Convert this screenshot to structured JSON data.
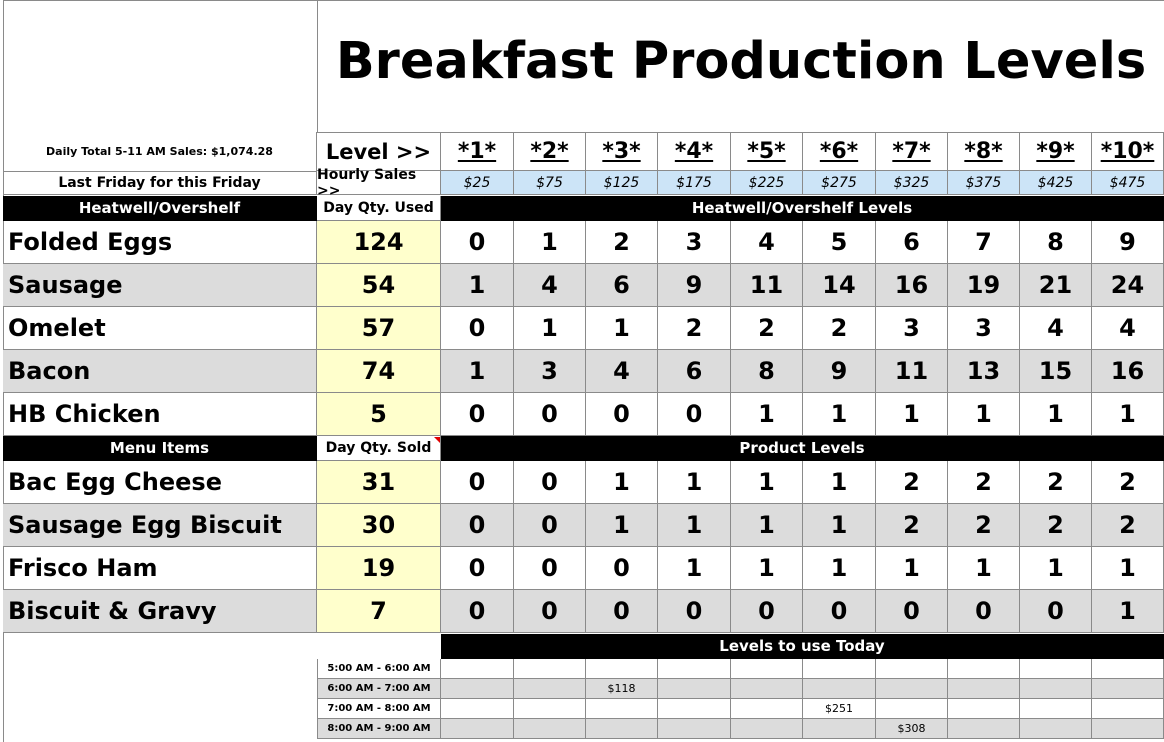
{
  "title": "Breakfast Production Levels",
  "daily_total": "Daily Total 5-11 AM Sales: $1,074.28",
  "last_friday": "Last Friday for this Friday",
  "level_label": "Level >>",
  "hourly_sales_label": "Hourly Sales >>",
  "levels": [
    "*1*",
    "*2*",
    "*3*",
    "*4*",
    "*5*",
    "*6*",
    "*7*",
    "*8*",
    "*9*",
    "*10*"
  ],
  "hourly_sales": [
    "$25",
    "$75",
    "$125",
    "$175",
    "$225",
    "$275",
    "$325",
    "$375",
    "$425",
    "$475"
  ],
  "heatwell": {
    "section_label": "Heatwell/Overshelf",
    "qty_label": "Day Qty. Used",
    "levels_label": "Heatwell/Overshelf Levels",
    "rows": [
      {
        "name": "Folded Eggs",
        "qty": "124",
        "values": [
          "0",
          "1",
          "2",
          "3",
          "4",
          "5",
          "6",
          "7",
          "8",
          "9"
        ]
      },
      {
        "name": "Sausage",
        "qty": "54",
        "values": [
          "1",
          "4",
          "6",
          "9",
          "11",
          "14",
          "16",
          "19",
          "21",
          "24"
        ]
      },
      {
        "name": "Omelet",
        "qty": "57",
        "values": [
          "0",
          "1",
          "1",
          "2",
          "2",
          "2",
          "3",
          "3",
          "4",
          "4"
        ]
      },
      {
        "name": "Bacon",
        "qty": "74",
        "values": [
          "1",
          "3",
          "4",
          "6",
          "8",
          "9",
          "11",
          "13",
          "15",
          "16"
        ]
      },
      {
        "name": "HB Chicken",
        "qty": "5",
        "values": [
          "0",
          "0",
          "0",
          "0",
          "1",
          "1",
          "1",
          "1",
          "1",
          "1"
        ]
      }
    ]
  },
  "menu": {
    "section_label": "Menu Items",
    "qty_label": "Day Qty. Sold",
    "levels_label": "Product Levels",
    "rows": [
      {
        "name": "Bac Egg Cheese",
        "qty": "31",
        "values": [
          "0",
          "0",
          "1",
          "1",
          "1",
          "1",
          "2",
          "2",
          "2",
          "2"
        ]
      },
      {
        "name": "Sausage Egg Biscuit",
        "qty": "30",
        "values": [
          "0",
          "0",
          "1",
          "1",
          "1",
          "1",
          "2",
          "2",
          "2",
          "2"
        ]
      },
      {
        "name": "Frisco Ham",
        "qty": "19",
        "values": [
          "0",
          "0",
          "0",
          "1",
          "1",
          "1",
          "1",
          "1",
          "1",
          "1"
        ]
      },
      {
        "name": "Biscuit & Gravy",
        "qty": "7",
        "values": [
          "0",
          "0",
          "0",
          "0",
          "0",
          "0",
          "0",
          "0",
          "0",
          "1"
        ]
      }
    ]
  },
  "today": {
    "label": "Levels to use Today",
    "rows": [
      {
        "time": "5:00 AM - 6:00 AM",
        "values": [
          "",
          "",
          "",
          "",
          "",
          "",
          "",
          "",
          "",
          ""
        ]
      },
      {
        "time": "6:00 AM - 7:00 AM",
        "values": [
          "",
          "",
          "$118",
          "",
          "",
          "",
          "",
          "",
          "",
          ""
        ]
      },
      {
        "time": "7:00 AM - 8:00 AM",
        "values": [
          "",
          "",
          "",
          "",
          "",
          "$251",
          "",
          "",
          "",
          ""
        ]
      },
      {
        "time": "8:00 AM - 9:00 AM",
        "values": [
          "",
          "",
          "",
          "",
          "",
          "",
          "$308",
          "",
          "",
          ""
        ]
      }
    ]
  }
}
